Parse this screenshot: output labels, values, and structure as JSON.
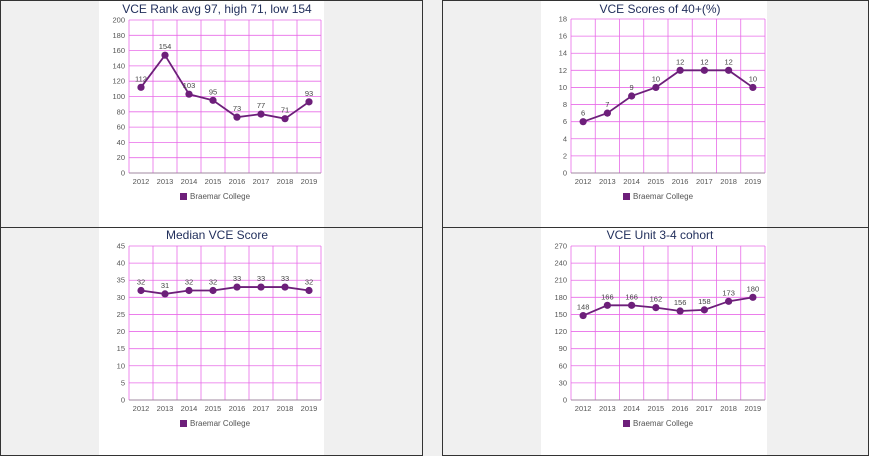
{
  "charts": [
    {
      "type": "line",
      "title": "VCE Rank avg 97, high 71, low 154",
      "categories": [
        "2012",
        "2013",
        "2014",
        "2015",
        "2016",
        "2017",
        "2018",
        "2019"
      ],
      "series": [
        {
          "name": "Braemar College",
          "values": [
            112,
            154,
            103,
            95,
            73,
            77,
            71,
            93
          ]
        }
      ],
      "data_labels": [
        "112",
        "154",
        "103",
        "95",
        "73",
        "77",
        "71",
        "93"
      ],
      "ylim": [
        0,
        200
      ],
      "yticks": [
        0,
        20,
        40,
        60,
        80,
        100,
        120,
        140,
        160,
        180,
        200
      ],
      "grid": true,
      "legend": "bottom-center",
      "color": "#6d1f7a",
      "grid_color": "#e86be8"
    },
    {
      "type": "line",
      "title": "VCE Scores of 40+(%)",
      "categories": [
        "2012",
        "2013",
        "2014",
        "2015",
        "2016",
        "2017",
        "2018",
        "2019"
      ],
      "series": [
        {
          "name": "Braemar College",
          "values": [
            6,
            7,
            9,
            10,
            12,
            12,
            12,
            10
          ]
        }
      ],
      "data_labels": [
        "6",
        "7",
        "9",
        "10",
        "12",
        "12",
        "12",
        "10"
      ],
      "ylim": [
        0,
        18
      ],
      "yticks": [
        0,
        2,
        4,
        6,
        8,
        10,
        12,
        14,
        16,
        18
      ],
      "grid": true,
      "legend": "bottom-center",
      "color": "#6d1f7a",
      "grid_color": "#e86be8"
    },
    {
      "type": "line",
      "title": "Median VCE Score",
      "categories": [
        "2012",
        "2013",
        "2014",
        "2015",
        "2016",
        "2017",
        "2018",
        "2019"
      ],
      "series": [
        {
          "name": "Braemar College",
          "values": [
            32,
            31,
            32,
            32,
            33,
            33,
            33,
            32
          ]
        }
      ],
      "data_labels": [
        "32",
        "31",
        "32",
        "32",
        "33",
        "33",
        "33",
        "32"
      ],
      "ylim": [
        0,
        45
      ],
      "yticks": [
        0,
        5,
        10,
        15,
        20,
        25,
        30,
        35,
        40,
        45
      ],
      "grid": true,
      "legend": "bottom-center",
      "color": "#6d1f7a",
      "grid_color": "#e86be8"
    },
    {
      "type": "line",
      "title": "VCE Unit 3-4 cohort",
      "categories": [
        "2012",
        "2013",
        "2014",
        "2015",
        "2016",
        "2017",
        "2018",
        "2019"
      ],
      "series": [
        {
          "name": "Braemar College",
          "values": [
            148,
            166,
            166,
            162,
            156,
            158,
            173,
            180
          ]
        }
      ],
      "data_labels": [
        "148",
        "166",
        "166",
        "162",
        "156",
        "158",
        "173",
        "180"
      ],
      "ylim": [
        0,
        270
      ],
      "yticks": [
        0,
        30,
        60,
        90,
        120,
        150,
        180,
        210,
        240,
        270
      ],
      "grid": true,
      "legend": "bottom-center",
      "color": "#6d1f7a",
      "grid_color": "#e86be8"
    }
  ]
}
